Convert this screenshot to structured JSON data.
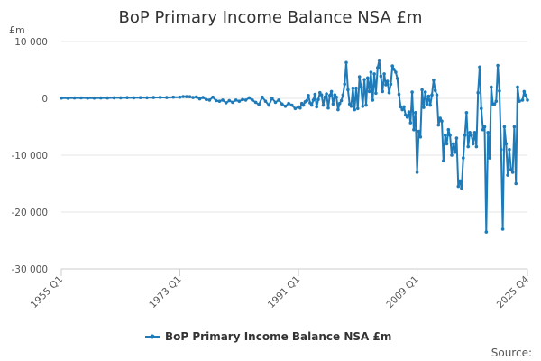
{
  "chart_data": {
    "type": "line",
    "title": "BoP Primary Income Balance NSA £m",
    "ylabel": "£m",
    "xlabel": "",
    "ylim": [
      -30000,
      10000
    ],
    "yticks": [
      10000,
      0,
      -10000,
      -20000,
      -30000
    ],
    "ytick_labels": [
      "10 000",
      "0",
      "-10 000",
      "-20 000",
      "-30 000"
    ],
    "xlim": [
      1955.0,
      2025.75
    ],
    "xticks": [
      1955.0,
      1973.0,
      1991.0,
      2009.0,
      2025.75
    ],
    "xtick_labels": [
      "1955 Q1",
      "1973 Q1",
      "1991 Q1",
      "2009 Q1",
      "2025 Q4"
    ],
    "grid": true,
    "legend_position": "bottom",
    "source": "Source:",
    "series": [
      {
        "name": "BoP Primary Income Balance NSA £m",
        "color": "#1f7ab8",
        "points": [
          [
            1955.0,
            50
          ],
          [
            1956.0,
            30
          ],
          [
            1957.0,
            60
          ],
          [
            1958.0,
            80
          ],
          [
            1959.0,
            40
          ],
          [
            1960.0,
            50
          ],
          [
            1961.0,
            70
          ],
          [
            1962.0,
            60
          ],
          [
            1963.0,
            90
          ],
          [
            1964.0,
            100
          ],
          [
            1965.0,
            120
          ],
          [
            1966.0,
            100
          ],
          [
            1967.0,
            130
          ],
          [
            1968.0,
            110
          ],
          [
            1969.0,
            150
          ],
          [
            1970.0,
            180
          ],
          [
            1971.0,
            150
          ],
          [
            1972.0,
            200
          ],
          [
            1973.0,
            200
          ],
          [
            1973.5,
            320
          ],
          [
            1974.0,
            300
          ],
          [
            1974.5,
            280
          ],
          [
            1975.0,
            150
          ],
          [
            1975.5,
            250
          ],
          [
            1976.0,
            -100
          ],
          [
            1976.5,
            150
          ],
          [
            1977.0,
            -200
          ],
          [
            1977.5,
            -300
          ],
          [
            1978.0,
            200
          ],
          [
            1978.5,
            -400
          ],
          [
            1979.0,
            -500
          ],
          [
            1979.5,
            -300
          ],
          [
            1980.0,
            -800
          ],
          [
            1980.5,
            -400
          ],
          [
            1981.0,
            -700
          ],
          [
            1981.5,
            -300
          ],
          [
            1982.0,
            -500
          ],
          [
            1982.5,
            -200
          ],
          [
            1983.0,
            -300
          ],
          [
            1983.5,
            100
          ],
          [
            1984.0,
            -300
          ],
          [
            1984.5,
            -700
          ],
          [
            1985.0,
            -1100
          ],
          [
            1985.5,
            200
          ],
          [
            1986.0,
            -500
          ],
          [
            1986.5,
            -1200
          ],
          [
            1987.0,
            0
          ],
          [
            1987.5,
            -700
          ],
          [
            1988.0,
            -300
          ],
          [
            1988.5,
            -1000
          ],
          [
            1989.0,
            -1400
          ],
          [
            1989.5,
            -900
          ],
          [
            1990.0,
            -1200
          ],
          [
            1990.5,
            -1800
          ],
          [
            1991.0,
            -1500
          ],
          [
            1991.25,
            -1700
          ],
          [
            1991.5,
            -900
          ],
          [
            1991.75,
            -1200
          ],
          [
            1992.0,
            -600
          ],
          [
            1992.25,
            -400
          ],
          [
            1992.5,
            500
          ],
          [
            1992.75,
            -800
          ],
          [
            1993.0,
            -1200
          ],
          [
            1993.25,
            -300
          ],
          [
            1993.5,
            700
          ],
          [
            1993.75,
            -1500
          ],
          [
            1994.0,
            -200
          ],
          [
            1994.25,
            1000
          ],
          [
            1994.5,
            600
          ],
          [
            1994.75,
            -1200
          ],
          [
            1995.0,
            200
          ],
          [
            1995.25,
            800
          ],
          [
            1995.5,
            -1700
          ],
          [
            1995.75,
            500
          ],
          [
            1996.0,
            1200
          ],
          [
            1996.25,
            -1000
          ],
          [
            1996.5,
            600
          ],
          [
            1996.75,
            200
          ],
          [
            1997.0,
            -2000
          ],
          [
            1997.25,
            -900
          ],
          [
            1997.5,
            -400
          ],
          [
            1997.75,
            600
          ],
          [
            1998.0,
            2500
          ],
          [
            1998.25,
            6300
          ],
          [
            1998.5,
            1500
          ],
          [
            1998.75,
            -1000
          ],
          [
            1999.0,
            -1400
          ],
          [
            1999.25,
            1800
          ],
          [
            1999.5,
            -2000
          ],
          [
            1999.75,
            1800
          ],
          [
            2000.0,
            -1800
          ],
          [
            2000.25,
            3800
          ],
          [
            2000.5,
            2000
          ],
          [
            2000.75,
            -1400
          ],
          [
            2001.0,
            3300
          ],
          [
            2001.25,
            -1200
          ],
          [
            2001.5,
            3600
          ],
          [
            2001.75,
            1200
          ],
          [
            2002.0,
            4600
          ],
          [
            2002.25,
            -300
          ],
          [
            2002.5,
            4300
          ],
          [
            2002.75,
            900
          ],
          [
            2003.0,
            5400
          ],
          [
            2003.25,
            6700
          ],
          [
            2003.5,
            3900
          ],
          [
            2003.75,
            1200
          ],
          [
            2004.0,
            4300
          ],
          [
            2004.25,
            2400
          ],
          [
            2004.5,
            3000
          ],
          [
            2004.75,
            1000
          ],
          [
            2005.0,
            2500
          ],
          [
            2005.25,
            5700
          ],
          [
            2005.5,
            5100
          ],
          [
            2005.75,
            4600
          ],
          [
            2006.0,
            3500
          ],
          [
            2006.25,
            700
          ],
          [
            2006.5,
            -1500
          ],
          [
            2006.75,
            -2000
          ],
          [
            2007.0,
            -1500
          ],
          [
            2007.25,
            -2900
          ],
          [
            2007.5,
            -3300
          ],
          [
            2007.75,
            -2400
          ],
          [
            2008.0,
            -4300
          ],
          [
            2008.25,
            1100
          ],
          [
            2008.5,
            -5500
          ],
          [
            2008.75,
            -2500
          ],
          [
            2009.0,
            -13000
          ],
          [
            2009.25,
            -5800
          ],
          [
            2009.5,
            -6800
          ],
          [
            2009.75,
            1500
          ],
          [
            2010.0,
            -1600
          ],
          [
            2010.25,
            1100
          ],
          [
            2010.5,
            -1000
          ],
          [
            2010.75,
            400
          ],
          [
            2011.0,
            -1200
          ],
          [
            2011.25,
            600
          ],
          [
            2011.5,
            3200
          ],
          [
            2011.75,
            1400
          ],
          [
            2012.0,
            600
          ],
          [
            2012.25,
            -4700
          ],
          [
            2012.5,
            -3500
          ],
          [
            2012.75,
            -4000
          ],
          [
            2013.0,
            -11000
          ],
          [
            2013.25,
            -6500
          ],
          [
            2013.5,
            -8000
          ],
          [
            2013.75,
            -5500
          ],
          [
            2014.0,
            -6500
          ],
          [
            2014.25,
            -10000
          ],
          [
            2014.5,
            -8000
          ],
          [
            2014.75,
            -9500
          ],
          [
            2015.0,
            -7000
          ],
          [
            2015.25,
            -15500
          ],
          [
            2015.5,
            -14500
          ],
          [
            2015.75,
            -15800
          ],
          [
            2016.0,
            -10500
          ],
          [
            2016.25,
            -6500
          ],
          [
            2016.5,
            -2500
          ],
          [
            2016.75,
            -8500
          ],
          [
            2017.0,
            -6000
          ],
          [
            2017.25,
            -6500
          ],
          [
            2017.5,
            -8000
          ],
          [
            2017.75,
            -6000
          ],
          [
            2018.0,
            -8500
          ],
          [
            2018.25,
            1000
          ],
          [
            2018.5,
            5500
          ],
          [
            2018.75,
            -1800
          ],
          [
            2019.0,
            -5500
          ],
          [
            2019.25,
            -5000
          ],
          [
            2019.5,
            -23500
          ],
          [
            2019.75,
            -6000
          ],
          [
            2020.0,
            -10500
          ],
          [
            2020.25,
            2000
          ],
          [
            2020.5,
            -1000
          ],
          [
            2020.75,
            -1000
          ],
          [
            2021.0,
            -500
          ],
          [
            2021.25,
            5800
          ],
          [
            2021.5,
            1300
          ],
          [
            2021.75,
            -9000
          ],
          [
            2022.0,
            -23000
          ],
          [
            2022.25,
            -5000
          ],
          [
            2022.5,
            -8000
          ],
          [
            2022.75,
            -13500
          ],
          [
            2023.0,
            -9000
          ],
          [
            2023.25,
            -12500
          ],
          [
            2023.5,
            -13000
          ],
          [
            2023.75,
            -5000
          ],
          [
            2024.0,
            -15000
          ],
          [
            2024.25,
            2000
          ],
          [
            2024.5,
            -500
          ],
          [
            2025.0,
            -300
          ],
          [
            2025.25,
            1200
          ],
          [
            2025.5,
            500
          ],
          [
            2025.75,
            -300
          ]
        ]
      }
    ]
  }
}
